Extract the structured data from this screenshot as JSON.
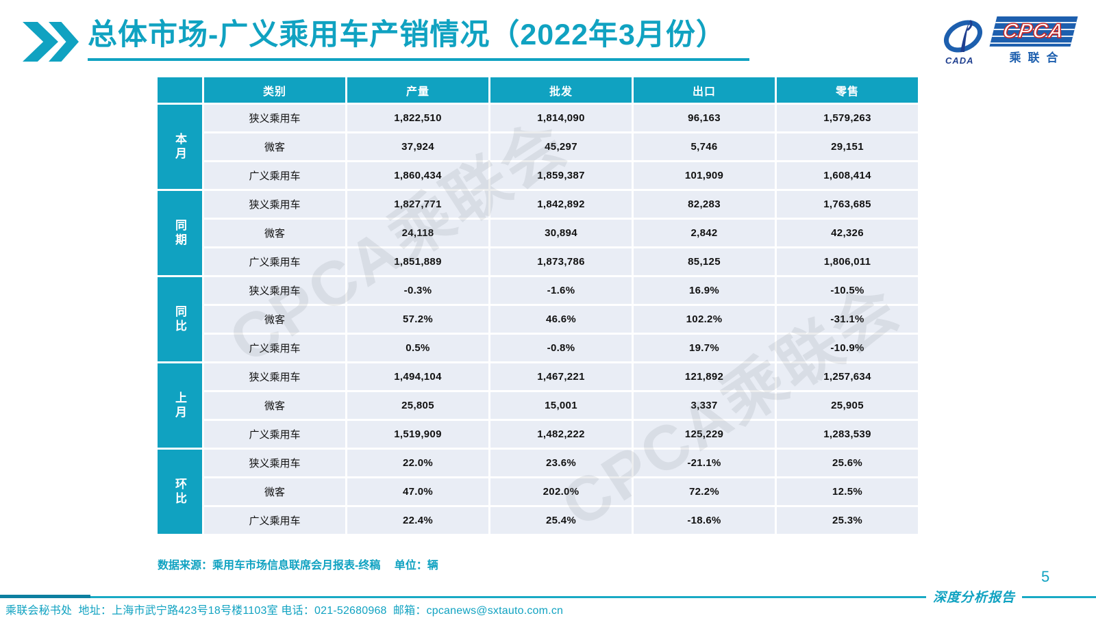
{
  "header": {
    "title": "总体市场-广义乘用车产销情况（2022年3月份）",
    "logo": {
      "cada": "CADA",
      "cpca": "CPCA",
      "cpca_cn": "乘联合"
    }
  },
  "watermark": "CPCA乘联会",
  "table": {
    "columns": [
      "类别",
      "产量",
      "批发",
      "出口",
      "零售"
    ],
    "groups": [
      {
        "label": "本月",
        "rows": [
          [
            "狭义乘用车",
            "1,822,510",
            "1,814,090",
            "96,163",
            "1,579,263"
          ],
          [
            "微客",
            "37,924",
            "45,297",
            "5,746",
            "29,151"
          ],
          [
            "广义乘用车",
            "1,860,434",
            "1,859,387",
            "101,909",
            "1,608,414"
          ]
        ]
      },
      {
        "label": "同期",
        "rows": [
          [
            "狭义乘用车",
            "1,827,771",
            "1,842,892",
            "82,283",
            "1,763,685"
          ],
          [
            "微客",
            "24,118",
            "30,894",
            "2,842",
            "42,326"
          ],
          [
            "广义乘用车",
            "1,851,889",
            "1,873,786",
            "85,125",
            "1,806,011"
          ]
        ]
      },
      {
        "label": "同比",
        "rows": [
          [
            "狭义乘用车",
            "-0.3%",
            "-1.6%",
            "16.9%",
            "-10.5%"
          ],
          [
            "微客",
            "57.2%",
            "46.6%",
            "102.2%",
            "-31.1%"
          ],
          [
            "广义乘用车",
            "0.5%",
            "-0.8%",
            "19.7%",
            "-10.9%"
          ]
        ]
      },
      {
        "label": "上月",
        "rows": [
          [
            "狭义乘用车",
            "1,494,104",
            "1,467,221",
            "121,892",
            "1,257,634"
          ],
          [
            "微客",
            "25,805",
            "15,001",
            "3,337",
            "25,905"
          ],
          [
            "广义乘用车",
            "1,519,909",
            "1,482,222",
            "125,229",
            "1,283,539"
          ]
        ]
      },
      {
        "label": "环比",
        "rows": [
          [
            "狭义乘用车",
            "22.0%",
            "23.6%",
            "-21.1%",
            "25.6%"
          ],
          [
            "微客",
            "47.0%",
            "202.0%",
            "72.2%",
            "12.5%"
          ],
          [
            "广义乘用车",
            "22.4%",
            "25.4%",
            "-18.6%",
            "25.3%"
          ]
        ]
      }
    ]
  },
  "chart_data": {
    "type": "table",
    "title": "总体市场-广义乘用车产销情况（2022年3月份）",
    "columns": [
      "类别",
      "产量",
      "批发",
      "出口",
      "零售"
    ],
    "row_groups": [
      "本月",
      "同期",
      "同比",
      "上月",
      "环比"
    ],
    "unit": "辆"
  },
  "source_note": "数据来源：乘用车市场信息联席会月报表-终稿　 单位：辆",
  "footer": {
    "text": "乘联会秘书处  地址：上海市武宁路423号18号楼1103室 电话：021-52680968  邮箱：cpcanews@sxtauto.com.cn",
    "report_label": "深度分析报告",
    "page_number": "5"
  },
  "colors": {
    "teal": "#10A2C1",
    "row_background": "#E9EDF5",
    "logo_blue": "#1D5FAE",
    "cpca_red": "#C62828"
  }
}
